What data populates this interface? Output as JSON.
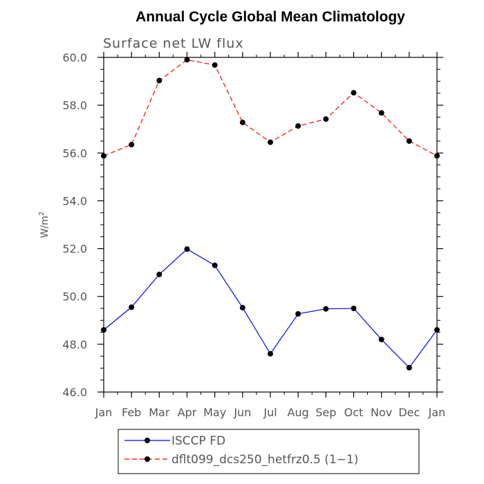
{
  "chart_data": {
    "type": "line",
    "title": "Annual Cycle Global Mean Climatology",
    "subtitle": "Surface net LW flux",
    "xlabel": "",
    "ylabel": "W/m",
    "ylabel_sup": "2",
    "categories": [
      "Jan",
      "Feb",
      "Mar",
      "Apr",
      "May",
      "Jun",
      "Jul",
      "Aug",
      "Sep",
      "Oct",
      "Nov",
      "Dec",
      "Jan"
    ],
    "ylim": [
      46.0,
      60.0
    ],
    "yticks": [
      "46.0",
      "48.0",
      "50.0",
      "52.0",
      "54.0",
      "56.0",
      "58.0",
      "60.0"
    ],
    "series": [
      {
        "name": "ISCCP FD",
        "color": "#0000ff",
        "dashed": false,
        "values": [
          48.6,
          49.55,
          50.92,
          51.98,
          51.3,
          49.53,
          47.6,
          49.27,
          49.48,
          49.5,
          48.2,
          47.02,
          48.6
        ]
      },
      {
        "name": "dflt099_dcs250_hetfrz0.5 (1−1)",
        "color": "#ff0000",
        "dashed": true,
        "values": [
          55.88,
          56.35,
          59.03,
          59.9,
          59.68,
          57.28,
          56.45,
          57.13,
          57.42,
          58.52,
          57.68,
          56.5,
          55.88
        ]
      }
    ]
  }
}
